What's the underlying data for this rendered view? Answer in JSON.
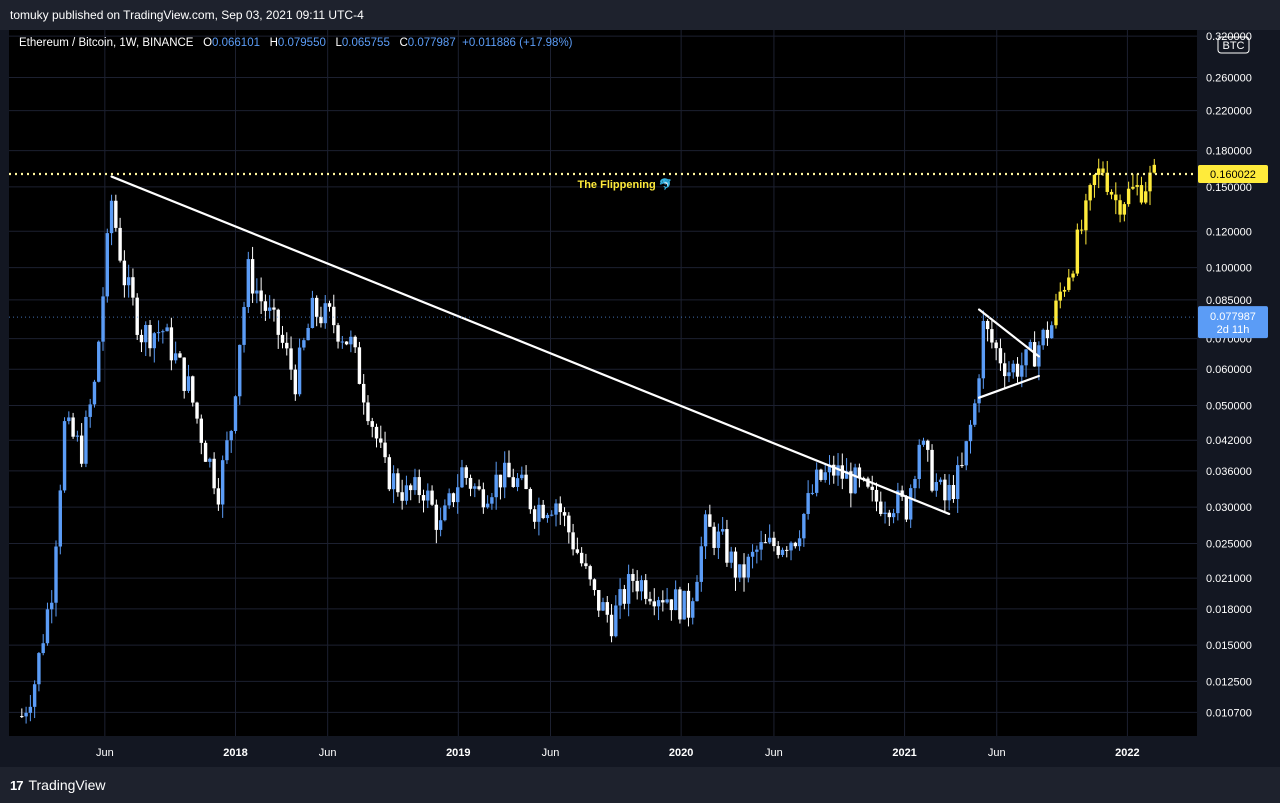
{
  "header": {
    "publisher_text": "tomuky published on TradingView.com, Sep 03, 2021 09:11 UTC-4"
  },
  "legend": {
    "symbol": "Ethereum / Bitcoin, 1W, BINANCE",
    "o_label": "O",
    "o_value": "0.066101",
    "h_label": "H",
    "h_value": "0.079550",
    "l_label": "L",
    "l_value": "0.065755",
    "c_label": "C",
    "c_value": "0.077987",
    "change": "+0.011886 (+17.98%)"
  },
  "footer": {
    "brand": "TradingView",
    "logo_glyph": "17"
  },
  "colors": {
    "background": "#000000",
    "panel": "#131722",
    "bar_blue": "#5b9cf6",
    "bar_white": "#ffffff",
    "bar_yellow": "#ffeb3b",
    "line": "#ffffff",
    "flip_line": "#fff59d",
    "annotation": "#ffeb3b"
  },
  "chart_data": {
    "type": "candlestick",
    "title": "Ethereum / Bitcoin, 1W, BINANCE",
    "scale": "log",
    "currency_badge": "BTC",
    "grid": true,
    "y_ticks": [
      "0.320000",
      "0.260000",
      "0.220000",
      "0.180000",
      "0.150000",
      "0.120000",
      "0.100000",
      "0.085000",
      "0.070000",
      "0.060000",
      "0.050000",
      "0.042000",
      "0.036000",
      "0.030000",
      "0.025000",
      "0.021000",
      "0.018000",
      "0.015000",
      "0.012500",
      "0.010700"
    ],
    "x_ticks": [
      "Jun",
      "2018",
      "Jun",
      "2019",
      "Jun",
      "2020",
      "Jun",
      "2021",
      "Jun",
      "2022"
    ],
    "price_marker": {
      "value": "0.077987",
      "countdown": "2d 11h"
    },
    "flippening": {
      "value": 0.160022,
      "label_value": "0.160022",
      "label": "The Flippening 🐬"
    },
    "trendlines": [
      {
        "from": [
          "2017-06-12",
          0.158
        ],
        "to": [
          "2021-03-15",
          0.029
        ]
      },
      {
        "from": [
          "2021-05-03",
          0.081
        ],
        "to": [
          "2021-08-09",
          0.064
        ]
      },
      {
        "from": [
          "2021-05-03",
          0.052
        ],
        "to": [
          "2021-08-09",
          0.058
        ]
      }
    ],
    "anchors": [
      [
        "2017-01-16",
        0.0105
      ],
      [
        "2017-02-06",
        0.0125
      ],
      [
        "2017-03-06",
        0.02
      ],
      [
        "2017-03-27",
        0.045
      ],
      [
        "2017-04-24",
        0.04
      ],
      [
        "2017-05-15",
        0.055
      ],
      [
        "2017-06-12",
        0.14
      ],
      [
        "2017-07-03",
        0.095
      ],
      [
        "2017-07-31",
        0.072
      ],
      [
        "2017-09-04",
        0.073
      ],
      [
        "2017-10-16",
        0.055
      ],
      [
        "2017-11-13",
        0.04
      ],
      [
        "2017-12-04",
        0.033
      ],
      [
        "2017-12-25",
        0.045
      ],
      [
        "2018-01-08",
        0.07
      ],
      [
        "2018-01-22",
        0.098
      ],
      [
        "2018-02-12",
        0.085
      ],
      [
        "2018-03-12",
        0.072
      ],
      [
        "2018-04-09",
        0.057
      ],
      [
        "2018-05-07",
        0.08
      ],
      [
        "2018-06-04",
        0.078
      ],
      [
        "2018-07-09",
        0.068
      ],
      [
        "2018-08-06",
        0.05
      ],
      [
        "2018-09-03",
        0.036
      ],
      [
        "2018-10-08",
        0.032
      ],
      [
        "2018-11-05",
        0.033
      ],
      [
        "2018-12-03",
        0.027
      ],
      [
        "2019-01-07",
        0.036
      ],
      [
        "2019-02-04",
        0.032
      ],
      [
        "2019-03-11",
        0.035
      ],
      [
        "2019-04-08",
        0.034
      ],
      [
        "2019-05-06",
        0.03
      ],
      [
        "2019-06-10",
        0.031
      ],
      [
        "2019-07-15",
        0.024
      ],
      [
        "2019-08-12",
        0.019
      ],
      [
        "2019-09-09",
        0.017
      ],
      [
        "2019-10-14",
        0.021
      ],
      [
        "2019-11-11",
        0.02
      ],
      [
        "2019-12-16",
        0.019
      ],
      [
        "2020-01-13",
        0.018
      ],
      [
        "2020-02-10",
        0.027
      ],
      [
        "2020-03-09",
        0.025
      ],
      [
        "2020-04-06",
        0.021
      ],
      [
        "2020-05-04",
        0.024
      ],
      [
        "2020-06-08",
        0.025
      ],
      [
        "2020-07-06",
        0.026
      ],
      [
        "2020-08-10",
        0.034
      ],
      [
        "2020-09-07",
        0.036
      ],
      [
        "2020-10-12",
        0.034
      ],
      [
        "2020-11-09",
        0.031
      ],
      [
        "2020-12-14",
        0.031
      ],
      [
        "2021-01-04",
        0.03
      ],
      [
        "2021-01-25",
        0.042
      ],
      [
        "2021-02-15",
        0.035
      ],
      [
        "2021-03-08",
        0.031
      ],
      [
        "2021-04-05",
        0.036
      ],
      [
        "2021-04-26",
        0.05
      ],
      [
        "2021-05-10",
        0.074
      ],
      [
        "2021-05-31",
        0.066
      ],
      [
        "2021-06-21",
        0.06
      ],
      [
        "2021-07-19",
        0.062
      ],
      [
        "2021-08-09",
        0.068
      ],
      [
        "2021-08-30",
        0.075
      ],
      [
        "2021-09-13",
        0.088
      ],
      [
        "2021-10-04",
        0.105
      ],
      [
        "2021-10-25",
        0.13
      ],
      [
        "2021-11-08",
        0.155
      ],
      [
        "2021-11-22",
        0.165
      ],
      [
        "2021-12-13",
        0.14
      ],
      [
        "2022-01-03",
        0.145
      ],
      [
        "2022-01-24",
        0.15
      ],
      [
        "2022-02-14",
        0.158
      ]
    ],
    "x_range": [
      "2016-12-26",
      "2022-04-25"
    ],
    "ylim": [
      0.0095,
      0.33
    ]
  }
}
